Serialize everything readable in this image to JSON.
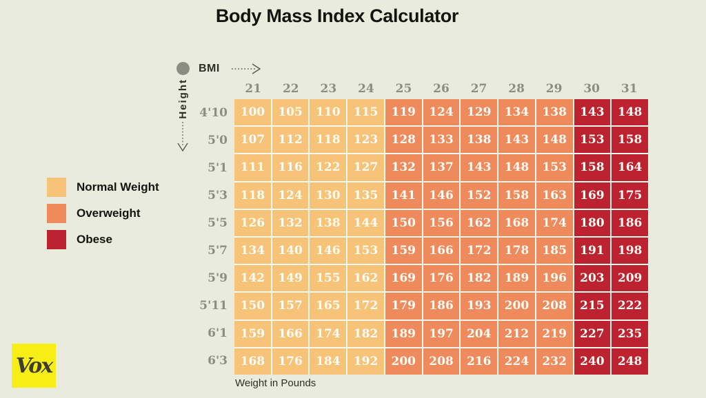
{
  "title": "Body Mass Index Calculator",
  "axes": {
    "bmi_label": "BMI",
    "height_label": "Height",
    "weight_label": "Weight in Pounds"
  },
  "legend": [
    {
      "key": "normal",
      "label": "Normal Weight",
      "color": "#f7c378"
    },
    {
      "key": "overweight",
      "label": "Overweight",
      "color": "#ee8a5c"
    },
    {
      "key": "obese",
      "label": "Obese",
      "color": "#bd2230"
    }
  ],
  "logo": {
    "text": "Vox",
    "bg_color": "#f6ee15"
  },
  "colors": {
    "background": "#e9ebdd",
    "gridline": "#fbf8ef",
    "axis_gray": "#8b8d83",
    "cell_text": "#fffdf6"
  },
  "chart_data": {
    "type": "heatmap",
    "title": "Body Mass Index Calculator",
    "x_label": "BMI",
    "x_categories": [
      "21",
      "22",
      "23",
      "24",
      "25",
      "26",
      "27",
      "28",
      "29",
      "30",
      "31"
    ],
    "y_label": "Height",
    "y_categories": [
      "4'10",
      "5'0",
      "5'1",
      "5'3",
      "5'5",
      "5'7",
      "5'9",
      "5'11",
      "6'1",
      "6'3"
    ],
    "cell_unit": "Weight in Pounds",
    "thresholds": {
      "overweight_min_bmi": 25,
      "obese_min_bmi": 30
    },
    "rows": [
      [
        100,
        105,
        110,
        115,
        119,
        124,
        129,
        134,
        138,
        143,
        148
      ],
      [
        107,
        112,
        118,
        123,
        128,
        133,
        138,
        143,
        148,
        153,
        158
      ],
      [
        111,
        116,
        122,
        127,
        132,
        137,
        143,
        148,
        153,
        158,
        164
      ],
      [
        118,
        124,
        130,
        135,
        141,
        146,
        152,
        158,
        163,
        169,
        175
      ],
      [
        126,
        132,
        138,
        144,
        150,
        156,
        162,
        168,
        174,
        180,
        186
      ],
      [
        134,
        140,
        146,
        153,
        159,
        166,
        172,
        178,
        185,
        191,
        198
      ],
      [
        142,
        149,
        155,
        162,
        169,
        176,
        182,
        189,
        196,
        203,
        209
      ],
      [
        150,
        157,
        165,
        172,
        179,
        186,
        193,
        200,
        208,
        215,
        222
      ],
      [
        159,
        166,
        174,
        182,
        189,
        197,
        204,
        212,
        219,
        227,
        235
      ],
      [
        168,
        176,
        184,
        192,
        200,
        208,
        216,
        224,
        232,
        240,
        248
      ]
    ]
  }
}
